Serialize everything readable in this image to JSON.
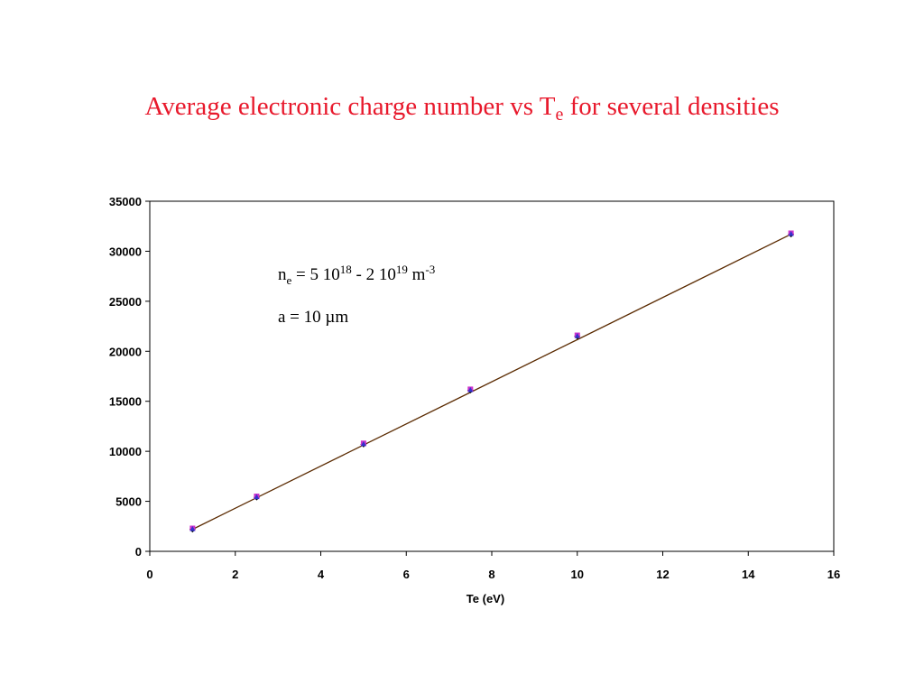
{
  "slide": {
    "title": {
      "before": "Average electronic charge number vs T",
      "sub": "e",
      "after": " for several densities"
    },
    "title_color": "#e8192c"
  },
  "chart_data": {
    "type": "line",
    "xlabel": "Te (eV)",
    "ylabel": "",
    "xlim": [
      0,
      16
    ],
    "ylim": [
      0,
      35000
    ],
    "xticks": [
      "0",
      "2",
      "4",
      "6",
      "8",
      "10",
      "12",
      "14",
      "16"
    ],
    "yticks": [
      "0",
      "5000",
      "10000",
      "15000",
      "20000",
      "25000",
      "30000",
      "35000"
    ],
    "grid": false,
    "legend": "none",
    "series": [
      {
        "marker": "diamond",
        "color": "#000000",
        "x": [
          1,
          2.5,
          5,
          7.5,
          10,
          15
        ],
        "y": [
          2200,
          5400,
          10700,
          16100,
          21500,
          31700
        ]
      },
      {
        "marker": "square",
        "color": "#cc33cc",
        "x": [
          1,
          2.5,
          5,
          7.5,
          10,
          15
        ],
        "y": [
          2300,
          5500,
          10800,
          16200,
          21600,
          31800
        ]
      },
      {
        "marker": "triangle",
        "color": "#3333cc",
        "x": [
          1,
          2.5,
          5,
          7.5,
          10,
          15
        ],
        "y": [
          2250,
          5450,
          10750,
          16150,
          21550,
          31750
        ]
      }
    ],
    "fit_line": {
      "color": "#5a2a00",
      "x": [
        1,
        15
      ],
      "y": [
        2200,
        31700
      ]
    },
    "annotations": {
      "density": {
        "n": "n",
        "n_sub": "e",
        "eq": " = 5 10",
        "exp1": "18",
        "mid": " - 2 10",
        "exp2": "19",
        "unit": " m",
        "exp3": "-3"
      },
      "radius": "a  = 10 µm"
    }
  }
}
